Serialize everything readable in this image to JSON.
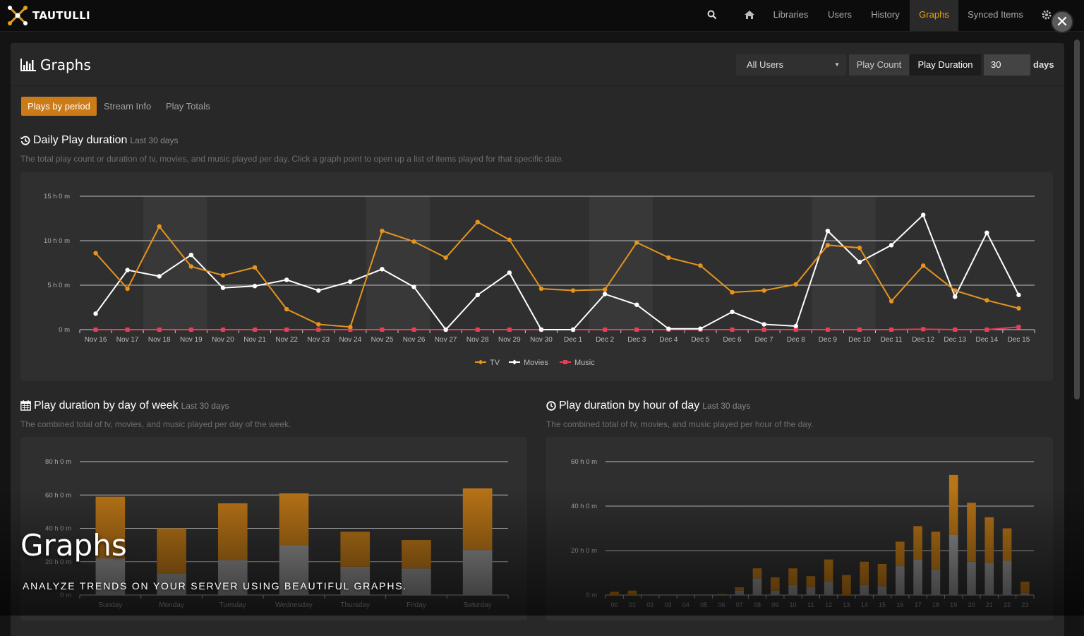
{
  "app": {
    "name": "TAUTULLI"
  },
  "nav": {
    "items": [
      {
        "label": "Libraries"
      },
      {
        "label": "Users"
      },
      {
        "label": "History"
      },
      {
        "label": "Graphs"
      },
      {
        "label": "Synced Items"
      }
    ],
    "active": "Graphs"
  },
  "page": {
    "title": "Graphs"
  },
  "controls": {
    "user_select": "All Users",
    "play_count_label": "Play Count",
    "play_duration_label": "Play Duration",
    "days_value": "30",
    "days_label": "days"
  },
  "tabs": [
    {
      "label": "Plays by period"
    },
    {
      "label": "Stream Info"
    },
    {
      "label": "Play Totals"
    }
  ],
  "sections": {
    "daily": {
      "title": "Daily Play duration",
      "subtitle": "Last 30 days",
      "description": "The total play count or duration of tv, movies, and music played per day. Click a graph point to open up a list of items played for that specific date."
    },
    "dow": {
      "title": "Play duration by day of week",
      "subtitle": "Last 30 days",
      "description": "The combined total of tv, movies, and music played per day of the week."
    },
    "hour": {
      "title": "Play duration by hour of day",
      "subtitle": "Last 30 days",
      "description": "The combined total of tv, movies, and music played per hour of the day."
    }
  },
  "overlay": {
    "title": "Graphs",
    "subtitle": "ANALYZE TRENDS ON YOUR SERVER USING BEAUTIFUL GRAPHS."
  },
  "colors": {
    "tv": "#e5941e",
    "movies": "#ffffff",
    "music": "#e93d58",
    "bar_tv": "#b87417",
    "bar_movies": "#909090",
    "accent": "#e5a00d"
  },
  "chart_data": [
    {
      "type": "line",
      "unit": "hours",
      "categories": [
        "Nov 16",
        "Nov 17",
        "Nov 18",
        "Nov 19",
        "Nov 20",
        "Nov 21",
        "Nov 22",
        "Nov 23",
        "Nov 24",
        "Nov 25",
        "Nov 26",
        "Nov 27",
        "Nov 28",
        "Nov 29",
        "Nov 30",
        "Dec 1",
        "Dec 2",
        "Dec 3",
        "Dec 4",
        "Dec 5",
        "Dec 6",
        "Dec 7",
        "Dec 8",
        "Dec 9",
        "Dec 10",
        "Dec 11",
        "Dec 12",
        "Dec 13",
        "Dec 14",
        "Dec 15"
      ],
      "yticks": [
        "0 m",
        "5 h 0 m",
        "10 h 0 m",
        "15 h 0 m"
      ],
      "ylim": [
        0,
        15
      ],
      "series": [
        {
          "name": "TV",
          "values": [
            8.6,
            4.6,
            11.6,
            7.1,
            6.1,
            7.0,
            2.3,
            0.6,
            0.3,
            11.1,
            9.9,
            8.1,
            12.1,
            10.1,
            4.6,
            4.4,
            4.5,
            9.8,
            8.1,
            7.2,
            4.2,
            4.4,
            5.1,
            9.5,
            9.2,
            3.2,
            7.2,
            4.4,
            3.3,
            2.4
          ]
        },
        {
          "name": "Movies",
          "values": [
            1.8,
            6.7,
            6.0,
            8.4,
            4.7,
            4.9,
            5.6,
            4.4,
            5.4,
            6.8,
            4.8,
            0.0,
            3.9,
            6.4,
            0.0,
            0.0,
            4.0,
            2.8,
            0.1,
            0.1,
            2.0,
            0.6,
            0.4,
            11.1,
            7.6,
            9.5,
            12.9,
            3.7,
            10.9,
            3.9
          ]
        },
        {
          "name": "Music",
          "values": [
            0,
            0,
            0,
            0,
            0,
            0,
            0,
            0,
            0,
            0,
            0,
            0,
            0,
            0,
            0,
            0,
            0,
            0,
            0,
            0,
            0,
            0,
            0,
            0,
            0,
            0,
            0.05,
            0,
            0,
            0.3
          ]
        }
      ]
    },
    {
      "type": "bar",
      "stacked": true,
      "unit": "hours",
      "categories": [
        "Sunday",
        "Monday",
        "Tuesday",
        "Wednesday",
        "Thursday",
        "Friday",
        "Saturday"
      ],
      "yticks": [
        "0 m",
        "20 h 0 m",
        "40 h 0 m",
        "60 h 0 m",
        "80 h 0 m"
      ],
      "ylim": [
        0,
        80
      ],
      "series": [
        {
          "name": "Movies",
          "values": [
            22,
            13,
            21,
            30,
            17,
            16,
            27
          ]
        },
        {
          "name": "TV",
          "values": [
            37,
            27,
            34,
            31,
            21,
            17,
            37
          ]
        }
      ]
    },
    {
      "type": "bar",
      "stacked": true,
      "unit": "hours",
      "categories": [
        "00",
        "01",
        "02",
        "03",
        "04",
        "05",
        "06",
        "07",
        "08",
        "09",
        "10",
        "11",
        "12",
        "13",
        "14",
        "15",
        "16",
        "17",
        "18",
        "19",
        "20",
        "21",
        "22",
        "23"
      ],
      "yticks": [
        "0 m",
        "20 h 0 m",
        "40 h 0 m",
        "60 h 0 m"
      ],
      "ylim": [
        0,
        60
      ],
      "series": [
        {
          "name": "Movies",
          "values": [
            0,
            0,
            0,
            0,
            0,
            0,
            0.2,
            2,
            7.5,
            2,
            4.5,
            3.5,
            6,
            0,
            4.5,
            4,
            13,
            16,
            11.5,
            27,
            15,
            14.5,
            15.5,
            1
          ]
        },
        {
          "name": "TV",
          "values": [
            1.5,
            2,
            0,
            0,
            0,
            0,
            0.3,
            1.5,
            4.5,
            6,
            7.5,
            5,
            10,
            9,
            10.5,
            10,
            11,
            15,
            17,
            27,
            26.5,
            20.5,
            14.5,
            5
          ]
        }
      ]
    }
  ]
}
